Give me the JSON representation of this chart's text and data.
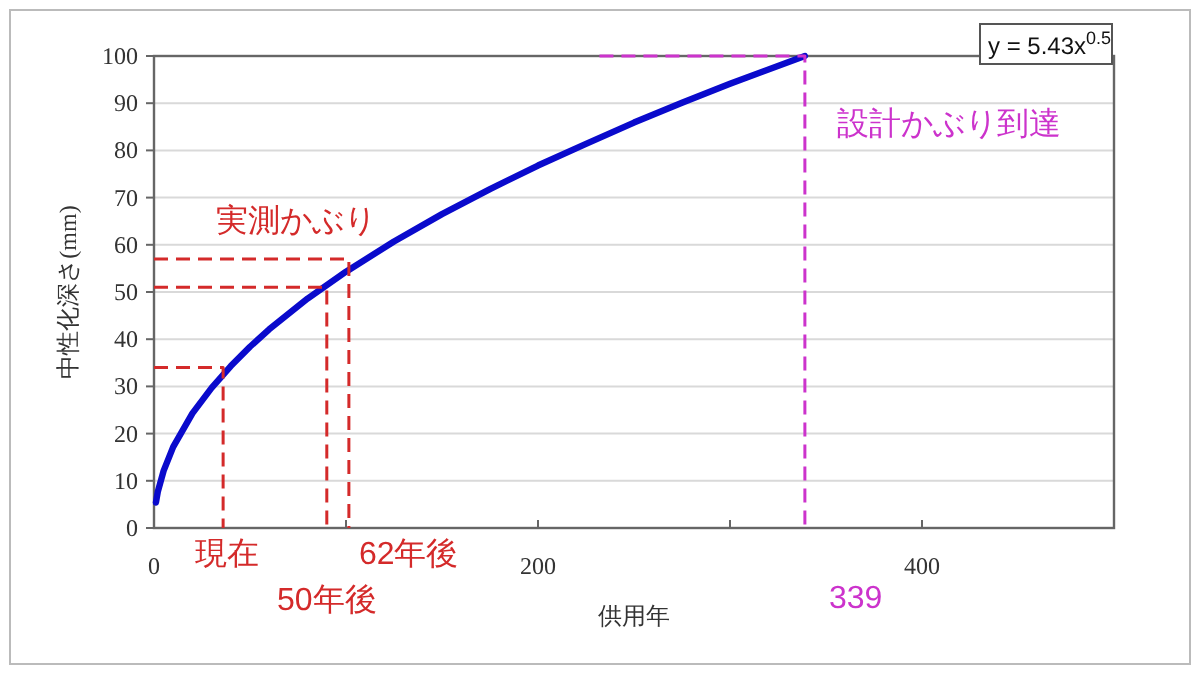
{
  "chart_data": {
    "type": "line",
    "xlabel": "供用年",
    "ylabel": "中性化深さ(mm)",
    "xlim": [
      0,
      500
    ],
    "ylim": [
      0,
      100
    ],
    "xticks": [
      0,
      {
        "value": 100,
        "label": null
      },
      200,
      {
        "value": 300,
        "label": null
      },
      400,
      {
        "value": 500,
        "label": null
      }
    ],
    "yticks": [
      0,
      10,
      20,
      30,
      40,
      50,
      60,
      70,
      80,
      90,
      100
    ],
    "grid": "y",
    "series": [
      {
        "type": "line",
        "color": "#0a0acc",
        "line_style": "solid",
        "x": [
          1,
          2,
          5,
          10,
          20,
          30,
          40,
          50,
          60,
          80,
          100,
          125,
          150,
          175,
          200,
          225,
          250,
          275,
          300,
          339
        ],
        "values": [
          5.4,
          7.7,
          12.1,
          17.2,
          24.3,
          29.7,
          34.3,
          38.4,
          42.1,
          48.6,
          54.3,
          60.7,
          66.5,
          71.8,
          76.8,
          81.4,
          85.9,
          90.1,
          94.1,
          100.0
        ]
      },
      {
        "type": "line",
        "color": "#d42a2a",
        "line_style": "dashed",
        "x": [
          0,
          36,
          36
        ],
        "values": [
          34,
          34,
          0
        ]
      },
      {
        "type": "line",
        "color": "#d42a2a",
        "line_style": "dashed",
        "x": [
          0,
          90,
          90
        ],
        "values": [
          51,
          51,
          0
        ]
      },
      {
        "type": "line",
        "color": "#d42a2a",
        "line_style": "dashed",
        "x": [
          0,
          101.5,
          101.5
        ],
        "values": [
          57,
          57,
          0
        ]
      },
      {
        "type": "line",
        "color": "#cc33cc",
        "line_style": "dashed",
        "x": [
          232,
          339,
          339
        ],
        "values": [
          100,
          100,
          0
        ]
      }
    ],
    "annotations": [
      {
        "text": "現在",
        "x": 36,
        "y": 0
      },
      {
        "text": "50年後",
        "x": 90,
        "y": 0
      },
      {
        "text": "62年後",
        "x": 101.5,
        "y": 0
      },
      {
        "text": "実測かぶり",
        "x": 0,
        "y": 57
      },
      {
        "text": "設計かぶり到達",
        "x": 339,
        "y": 100
      },
      {
        "text": "339",
        "x": 339,
        "y": 0
      },
      "y = 5.43x$^{0.5}$"
    ]
  }
}
